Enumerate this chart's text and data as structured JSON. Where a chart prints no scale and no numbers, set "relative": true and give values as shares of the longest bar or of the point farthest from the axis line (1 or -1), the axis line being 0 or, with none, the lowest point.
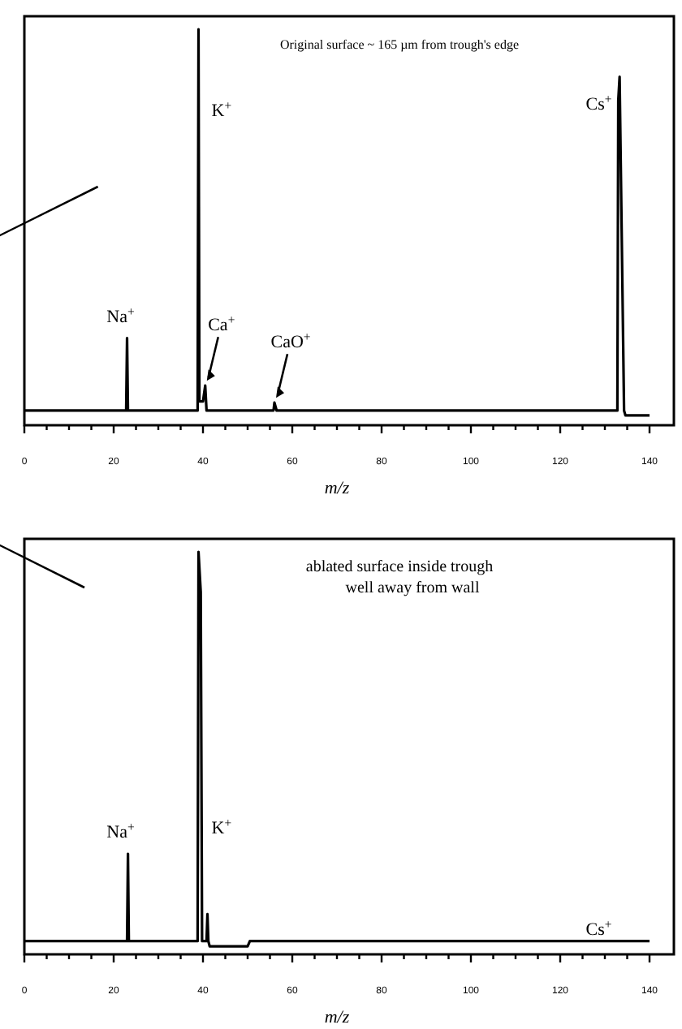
{
  "chart_data": [
    {
      "type": "line",
      "relative": true,
      "xlabel": "m/z",
      "xlim": [
        0,
        140
      ],
      "xticks": [
        0,
        {
          "value": 5,
          "label": null
        },
        {
          "value": 10,
          "label": null
        },
        {
          "value": 15,
          "label": null
        },
        20,
        {
          "value": 25,
          "label": null
        },
        {
          "value": 30,
          "label": null
        },
        {
          "value": 35,
          "label": null
        },
        40,
        {
          "value": 45,
          "label": null
        },
        {
          "value": 50,
          "label": null
        },
        {
          "value": 55,
          "label": null
        },
        60,
        {
          "value": 65,
          "label": null
        },
        {
          "value": 70,
          "label": null
        },
        {
          "value": 75,
          "label": null
        },
        80,
        {
          "value": 85,
          "label": null
        },
        {
          "value": 90,
          "label": null
        },
        {
          "value": 95,
          "label": null
        },
        100,
        {
          "value": 105,
          "label": null
        },
        {
          "value": 110,
          "label": null
        },
        {
          "value": 115,
          "label": null
        },
        120,
        {
          "value": 125,
          "label": null
        },
        {
          "value": 130,
          "label": null
        },
        {
          "value": 135,
          "label": null
        },
        140
      ],
      "series": [
        {
          "color": "#000000",
          "x": [
            0,
            22.8,
            23,
            23.2,
            38.8,
            39,
            39.2,
            40,
            40.5,
            40.8,
            55.8,
            56,
            56.5,
            132.8,
            133,
            133.3,
            134.3,
            134.6,
            140
          ],
          "values": [
            0.037,
            0.037,
            0.22,
            0.037,
            0.037,
            1,
            0.06,
            0.06,
            0.1,
            0.037,
            0.037,
            0.057,
            0.037,
            0.037,
            0.82,
            0.88,
            0.037,
            0.025,
            0.025
          ]
        }
      ],
      "annotations": [
        "Original surface ~ 165 µm from trough's edge",
        {
          "text": "Na$^{+}$",
          "x": 23,
          "y": 0.22
        },
        {
          "text": "K$^{+}$",
          "x": 39,
          "y": 0.78
        },
        {
          "text": "Ca$^{+}$",
          "x": 40.5,
          "y": 0.1
        },
        {
          "text": "CaO$^{+}$",
          "x": 56,
          "y": 0.057
        },
        {
          "text": "Cs$^{+}$",
          "x": 133,
          "y": 0.78
        }
      ]
    },
    {
      "type": "line",
      "relative": true,
      "xlabel": "m/z",
      "xlim": [
        0,
        140
      ],
      "xticks": [
        0,
        {
          "value": 5,
          "label": null
        },
        {
          "value": 10,
          "label": null
        },
        {
          "value": 15,
          "label": null
        },
        20,
        {
          "value": 25,
          "label": null
        },
        {
          "value": 30,
          "label": null
        },
        {
          "value": 35,
          "label": null
        },
        40,
        {
          "value": 45,
          "label": null
        },
        {
          "value": 50,
          "label": null
        },
        {
          "value": 55,
          "label": null
        },
        60,
        {
          "value": 65,
          "label": null
        },
        {
          "value": 70,
          "label": null
        },
        {
          "value": 75,
          "label": null
        },
        80,
        {
          "value": 85,
          "label": null
        },
        {
          "value": 90,
          "label": null
        },
        {
          "value": 95,
          "label": null
        },
        100,
        {
          "value": 105,
          "label": null
        },
        {
          "value": 110,
          "label": null
        },
        {
          "value": 115,
          "label": null
        },
        120,
        {
          "value": 125,
          "label": null
        },
        {
          "value": 130,
          "label": null
        },
        {
          "value": 135,
          "label": null
        },
        140
      ],
      "series": [
        {
          "color": "#000000",
          "x": [
            0,
            23,
            23.2,
            23.4,
            38.8,
            39,
            39.5,
            39.8,
            40.8,
            41,
            41.2,
            41.5,
            50,
            50.5,
            140
          ],
          "values": [
            0.033,
            0.033,
            0.25,
            0.033,
            0.033,
            1,
            0.9,
            0.033,
            0.033,
            0.1,
            0.033,
            0.02,
            0.02,
            0.033,
            0.033
          ]
        }
      ],
      "annotations": [
        "ablated surface inside trough\nwell away from wall",
        {
          "text": "Na$^{+}$",
          "x": 23,
          "y": 0.25
        },
        {
          "text": "K$^{+}$",
          "x": 39,
          "y": 0.3
        },
        {
          "text": "Cs$^{+}$",
          "x": 133,
          "y": 0.033
        }
      ]
    }
  ]
}
